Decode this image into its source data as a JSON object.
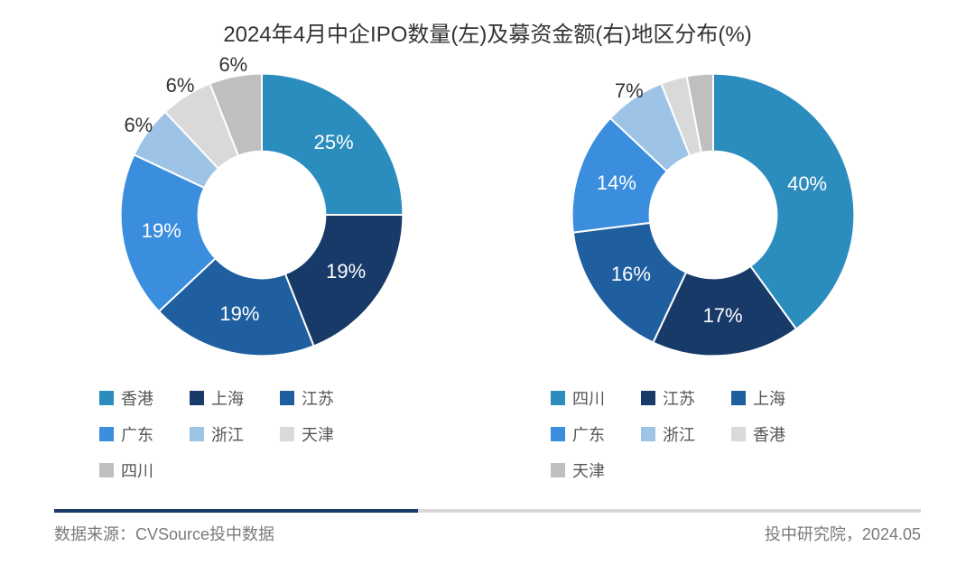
{
  "title": "2024年4月中企IPO数量(左)及募资金额(右)地区分布(%)",
  "footer_left": "数据来源：CVSource投中数据",
  "footer_right": "投中研究院，2024.05",
  "background_color": "#ffffff",
  "title_fontsize": 24,
  "label_fontsize": 22,
  "legend_fontsize": 18,
  "chart_left": {
    "type": "donut",
    "inner_radius_ratio": 0.45,
    "start_angle_deg": 0,
    "slices": [
      {
        "label": "香港",
        "value": 25,
        "color": "#2b8cbe",
        "label_r": 0.72
      },
      {
        "label": "上海",
        "value": 19,
        "color": "#183a68",
        "label_r": 0.72
      },
      {
        "label": "江苏",
        "value": 19,
        "color": "#1f5fa0",
        "label_r": 0.72
      },
      {
        "label": "广东",
        "value": 19,
        "color": "#3b8ede",
        "label_r": 0.72
      },
      {
        "label": "浙江",
        "value": 6,
        "color": "#9dc3e6",
        "label_r": 1.08
      },
      {
        "label": "天津",
        "value": 6,
        "color": "#d9d9d9",
        "label_r": 1.08
      },
      {
        "label": "四川",
        "value": 6,
        "color": "#bfbfbf",
        "label_r": 1.08
      }
    ],
    "legend_order": [
      "香港",
      "上海",
      "江苏",
      "广东",
      "浙江",
      "天津",
      "四川"
    ]
  },
  "chart_right": {
    "type": "donut",
    "inner_radius_ratio": 0.45,
    "start_angle_deg": 0,
    "slices": [
      {
        "label": "四川",
        "value": 40,
        "color": "#2b8cbe",
        "label_r": 0.7
      },
      {
        "label": "江苏",
        "value": 17,
        "color": "#183a68",
        "label_r": 0.72
      },
      {
        "label": "上海",
        "value": 16,
        "color": "#1f5fa0",
        "label_r": 0.72
      },
      {
        "label": "广东",
        "value": 14,
        "color": "#3b8ede",
        "label_r": 0.72
      },
      {
        "label": "浙江",
        "value": 7,
        "color": "#9dc3e6",
        "label_r": 1.06
      },
      {
        "label": "香港",
        "value": 3,
        "color": "#d9d9d9",
        "label_r": 1.2,
        "hide_label": true
      },
      {
        "label": "天津",
        "value": 3,
        "color": "#bfbfbf",
        "label_r": 1.2,
        "hide_label": true
      }
    ],
    "legend_order": [
      "四川",
      "江苏",
      "上海",
      "广东",
      "浙江",
      "香港",
      "天津"
    ]
  }
}
